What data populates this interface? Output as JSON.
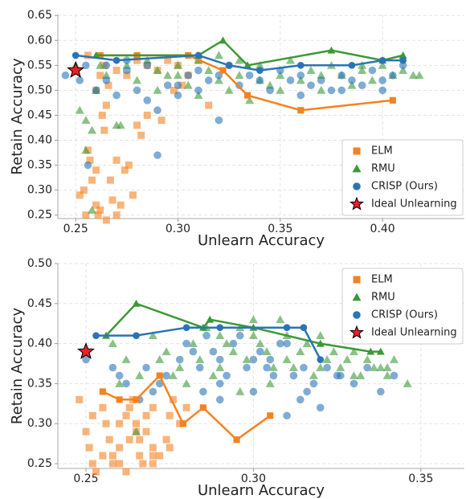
{
  "chart_data": [
    {
      "type": "scatter",
      "xlabel": "Unlearn Accuracy",
      "ylabel": "Retain Accuracy",
      "xlim": [
        0.2413,
        0.44
      ],
      "ylim": [
        0.243,
        0.652
      ],
      "xticks": [
        0.25,
        {
          "value": 0.3,
          "label": "0.30"
        },
        0.35,
        {
          "value": 0.4,
          "label": "0.40"
        }
      ],
      "yticks": [
        0.25,
        {
          "value": 0.3,
          "label": "0.30"
        },
        0.35,
        {
          "value": 0.4,
          "label": "0.40"
        },
        0.45,
        {
          "value": 0.5,
          "label": "0.50"
        },
        0.55,
        {
          "value": 0.6,
          "label": "0.60"
        },
        0.65
      ],
      "grid": true,
      "legend": "lower right",
      "series": [
        {
          "name": "ELM",
          "color": "#f5821f",
          "marker": "square",
          "x": [
            0.252,
            0.254,
            0.255,
            0.256,
            0.257,
            0.258,
            0.26,
            0.26,
            0.261,
            0.262,
            0.263,
            0.264,
            0.265,
            0.266,
            0.267,
            0.268,
            0.27,
            0.272,
            0.274,
            0.276,
            0.278,
            0.26,
            0.262,
            0.264,
            0.27,
            0.275,
            0.28,
            0.285,
            0.29,
            0.295,
            0.3,
            0.305,
            0.31,
            0.285,
            0.292,
            0.298,
            0.302,
            0.265,
            0.27,
            0.256,
            0.28,
            0.282,
            0.315
          ],
          "values": [
            0.29,
            0.3,
            0.25,
            0.38,
            0.36,
            0.32,
            0.34,
            0.27,
            0.25,
            0.26,
            0.45,
            0.42,
            0.47,
            0.51,
            0.32,
            0.28,
            0.36,
            0.27,
            0.34,
            0.35,
            0.29,
            0.5,
            0.53,
            0.55,
            0.54,
            0.53,
            0.56,
            0.55,
            0.54,
            0.56,
            0.55,
            0.53,
            0.56,
            0.45,
            0.44,
            0.5,
            0.51,
            0.24,
            0.25,
            0.57,
            0.43,
            0.41,
            0.47
          ],
          "frontier_x": [
            0.262,
            0.28,
            0.305,
            0.322,
            0.334,
            0.36,
            0.405
          ],
          "frontier_values": [
            0.57,
            0.57,
            0.57,
            0.54,
            0.49,
            0.46,
            0.48
          ]
        },
        {
          "name": "RMU",
          "color": "#3a9a35",
          "marker": "triangle",
          "x": [
            0.25,
            0.252,
            0.255,
            0.258,
            0.26,
            0.265,
            0.27,
            0.275,
            0.28,
            0.285,
            0.29,
            0.295,
            0.3,
            0.305,
            0.31,
            0.315,
            0.32,
            0.325,
            0.33,
            0.335,
            0.34,
            0.345,
            0.35,
            0.355,
            0.36,
            0.365,
            0.37,
            0.375,
            0.38,
            0.385,
            0.39,
            0.395,
            0.4,
            0.405,
            0.41,
            0.415,
            0.418,
            0.255,
            0.258,
            0.272,
            0.262,
            0.29,
            0.31,
            0.33,
            0.35,
            0.37,
            0.39,
            0.3,
            0.32,
            0.34
          ],
          "values": [
            0.55,
            0.46,
            0.38,
            0.26,
            0.5,
            0.53,
            0.43,
            0.55,
            0.52,
            0.56,
            0.54,
            0.53,
            0.55,
            0.51,
            0.56,
            0.54,
            0.52,
            0.5,
            0.53,
            0.48,
            0.55,
            0.51,
            0.53,
            0.56,
            0.52,
            0.54,
            0.5,
            0.55,
            0.53,
            0.51,
            0.54,
            0.52,
            0.55,
            0.53,
            0.54,
            0.53,
            0.53,
            0.44,
            0.42,
            0.43,
            0.55,
            0.5,
            0.49,
            0.56,
            0.5,
            0.53,
            0.55,
            0.53,
            0.57,
            0.52
          ],
          "frontier_x": [
            0.26,
            0.31,
            0.322,
            0.334,
            0.375,
            0.4,
            0.41
          ],
          "frontier_values": [
            0.57,
            0.57,
            0.6,
            0.55,
            0.58,
            0.56,
            0.57
          ]
        },
        {
          "name": "CRISP (Ours)",
          "color": "#2a74b5",
          "marker": "circle",
          "x": [
            0.245,
            0.252,
            0.256,
            0.26,
            0.265,
            0.27,
            0.275,
            0.28,
            0.285,
            0.29,
            0.295,
            0.3,
            0.305,
            0.31,
            0.315,
            0.32,
            0.325,
            0.33,
            0.335,
            0.34,
            0.345,
            0.35,
            0.355,
            0.36,
            0.365,
            0.37,
            0.375,
            0.38,
            0.385,
            0.39,
            0.395,
            0.4,
            0.405,
            0.41,
            0.255,
            0.265,
            0.275,
            0.29,
            0.31,
            0.32,
            0.36,
            0.38,
            0.4,
            0.285,
            0.3
          ],
          "values": [
            0.53,
            0.52,
            0.35,
            0.5,
            0.52,
            0.49,
            0.54,
            0.5,
            0.55,
            0.37,
            0.51,
            0.49,
            0.53,
            0.5,
            0.52,
            0.44,
            0.55,
            0.51,
            0.53,
            0.52,
            0.5,
            0.54,
            0.52,
            0.53,
            0.51,
            0.52,
            0.5,
            0.53,
            0.52,
            0.51,
            0.54,
            0.5,
            0.53,
            0.55,
            0.55,
            0.55,
            0.56,
            0.46,
            0.54,
            0.53,
            0.49,
            0.5,
            0.52,
            0.48,
            0.51
          ],
          "frontier_x": [
            0.25,
            0.27,
            0.31,
            0.325,
            0.34,
            0.36,
            0.385,
            0.4,
            0.41
          ],
          "frontier_values": [
            0.57,
            0.56,
            0.57,
            0.55,
            0.54,
            0.55,
            0.55,
            0.56,
            0.56
          ]
        },
        {
          "name": "Ideal Unlearning",
          "color": "#e8202a",
          "marker": "star",
          "x": [
            0.25
          ],
          "values": [
            0.54
          ]
        }
      ]
    },
    {
      "type": "scatter",
      "xlabel": "Unlearn Accuracy",
      "ylabel": "Retain Accuracy",
      "xlim": [
        0.2416,
        0.363
      ],
      "ylim": [
        0.244,
        0.5
      ],
      "xticks": [
        0.25,
        {
          "value": 0.3,
          "label": "0.30"
        },
        0.35
      ],
      "yticks": [
        0.25,
        {
          "value": 0.3,
          "label": "0.30"
        },
        0.35,
        {
          "value": 0.4,
          "label": "0.40"
        },
        0.45,
        {
          "value": 0.5,
          "label": "0.50"
        }
      ],
      "grid": true,
      "legend": "upper right",
      "series": [
        {
          "name": "ELM",
          "color": "#f5821f",
          "marker": "square",
          "x": [
            0.248,
            0.25,
            0.251,
            0.252,
            0.253,
            0.255,
            0.256,
            0.258,
            0.26,
            0.26,
            0.262,
            0.263,
            0.264,
            0.265,
            0.266,
            0.267,
            0.268,
            0.27,
            0.27,
            0.272,
            0.274,
            0.275,
            0.276,
            0.278,
            0.28,
            0.258,
            0.262,
            0.266,
            0.27,
            0.255,
            0.265,
            0.268,
            0.275,
            0.252,
            0.26,
            0.27,
            0.263,
            0.257
          ],
          "values": [
            0.33,
            0.29,
            0.27,
            0.31,
            0.24,
            0.32,
            0.3,
            0.26,
            0.27,
            0.25,
            0.31,
            0.28,
            0.33,
            0.3,
            0.26,
            0.25,
            0.29,
            0.27,
            0.32,
            0.26,
            0.28,
            0.31,
            0.33,
            0.3,
            0.32,
            0.25,
            0.24,
            0.28,
            0.25,
            0.26,
            0.29,
            0.31,
            0.27,
            0.25,
            0.3,
            0.26,
            0.32,
            0.28
          ],
          "frontier_x": [
            0.255,
            0.26,
            0.265,
            0.272,
            0.279,
            0.285,
            0.295,
            0.305
          ],
          "frontier_values": [
            0.34,
            0.33,
            0.33,
            0.36,
            0.3,
            0.32,
            0.28,
            0.31
          ]
        },
        {
          "name": "RMU",
          "color": "#3a9a35",
          "marker": "triangle",
          "x": [
            0.258,
            0.262,
            0.266,
            0.27,
            0.274,
            0.278,
            0.282,
            0.286,
            0.29,
            0.294,
            0.298,
            0.302,
            0.306,
            0.31,
            0.314,
            0.318,
            0.322,
            0.326,
            0.33,
            0.334,
            0.338,
            0.342,
            0.346,
            0.28,
            0.284,
            0.288,
            0.292,
            0.296,
            0.3,
            0.304,
            0.308,
            0.312,
            0.316,
            0.32,
            0.324,
            0.328,
            0.332,
            0.336,
            0.34,
            0.272,
            0.276,
            0.29,
            0.3,
            0.31,
            0.32,
            0.33,
            0.34,
            0.265,
            0.26,
            0.296,
            0.305
          ],
          "values": [
            0.4,
            0.38,
            0.36,
            0.41,
            0.39,
            0.37,
            0.4,
            0.42,
            0.41,
            0.39,
            0.38,
            0.4,
            0.37,
            0.41,
            0.39,
            0.36,
            0.38,
            0.37,
            0.36,
            0.38,
            0.37,
            0.38,
            0.35,
            0.35,
            0.38,
            0.36,
            0.4,
            0.42,
            0.41,
            0.39,
            0.43,
            0.37,
            0.4,
            0.41,
            0.39,
            0.38,
            0.36,
            0.37,
            0.36,
            0.38,
            0.36,
            0.37,
            0.43,
            0.38,
            0.37,
            0.39,
            0.37,
            0.29,
            0.35,
            0.34,
            0.35
          ],
          "frontier_x": [
            0.256,
            0.265,
            0.285,
            0.287,
            0.3,
            0.32,
            0.335,
            0.338
          ],
          "frontier_values": [
            0.41,
            0.45,
            0.42,
            0.43,
            0.42,
            0.4,
            0.39,
            0.39
          ]
        },
        {
          "name": "CRISP (Ours)",
          "color": "#2a74b5",
          "marker": "circle",
          "x": [
            0.25,
            0.258,
            0.262,
            0.266,
            0.27,
            0.274,
            0.278,
            0.282,
            0.286,
            0.29,
            0.294,
            0.298,
            0.302,
            0.306,
            0.31,
            0.314,
            0.318,
            0.322,
            0.326,
            0.33,
            0.334,
            0.338,
            0.342,
            0.28,
            0.284,
            0.288,
            0.292,
            0.296,
            0.3,
            0.304,
            0.308,
            0.312,
            0.316,
            0.268,
            0.272,
            0.29,
            0.3,
            0.31,
            0.315,
            0.32,
            0.29,
            0.305,
            0.325,
            0.26,
            0.285
          ],
          "values": [
            0.38,
            0.37,
            0.35,
            0.33,
            0.34,
            0.36,
            0.38,
            0.39,
            0.41,
            0.38,
            0.4,
            0.37,
            0.39,
            0.36,
            0.4,
            0.33,
            0.35,
            0.37,
            0.36,
            0.35,
            0.37,
            0.34,
            0.36,
            0.4,
            0.37,
            0.39,
            0.36,
            0.41,
            0.38,
            0.37,
            0.4,
            0.36,
            0.34,
            0.37,
            0.35,
            0.33,
            0.34,
            0.31,
            0.37,
            0.32,
            0.35,
            0.38,
            0.36,
            0.36,
            0.34
          ],
          "frontier_x": [
            0.253,
            0.265,
            0.28,
            0.29,
            0.31,
            0.315,
            0.32
          ],
          "frontier_values": [
            0.41,
            0.41,
            0.42,
            0.42,
            0.42,
            0.42,
            0.38
          ]
        },
        {
          "name": "Ideal Unlearning",
          "color": "#e8202a",
          "marker": "star",
          "x": [
            0.25
          ],
          "values": [
            0.39
          ]
        }
      ]
    }
  ]
}
